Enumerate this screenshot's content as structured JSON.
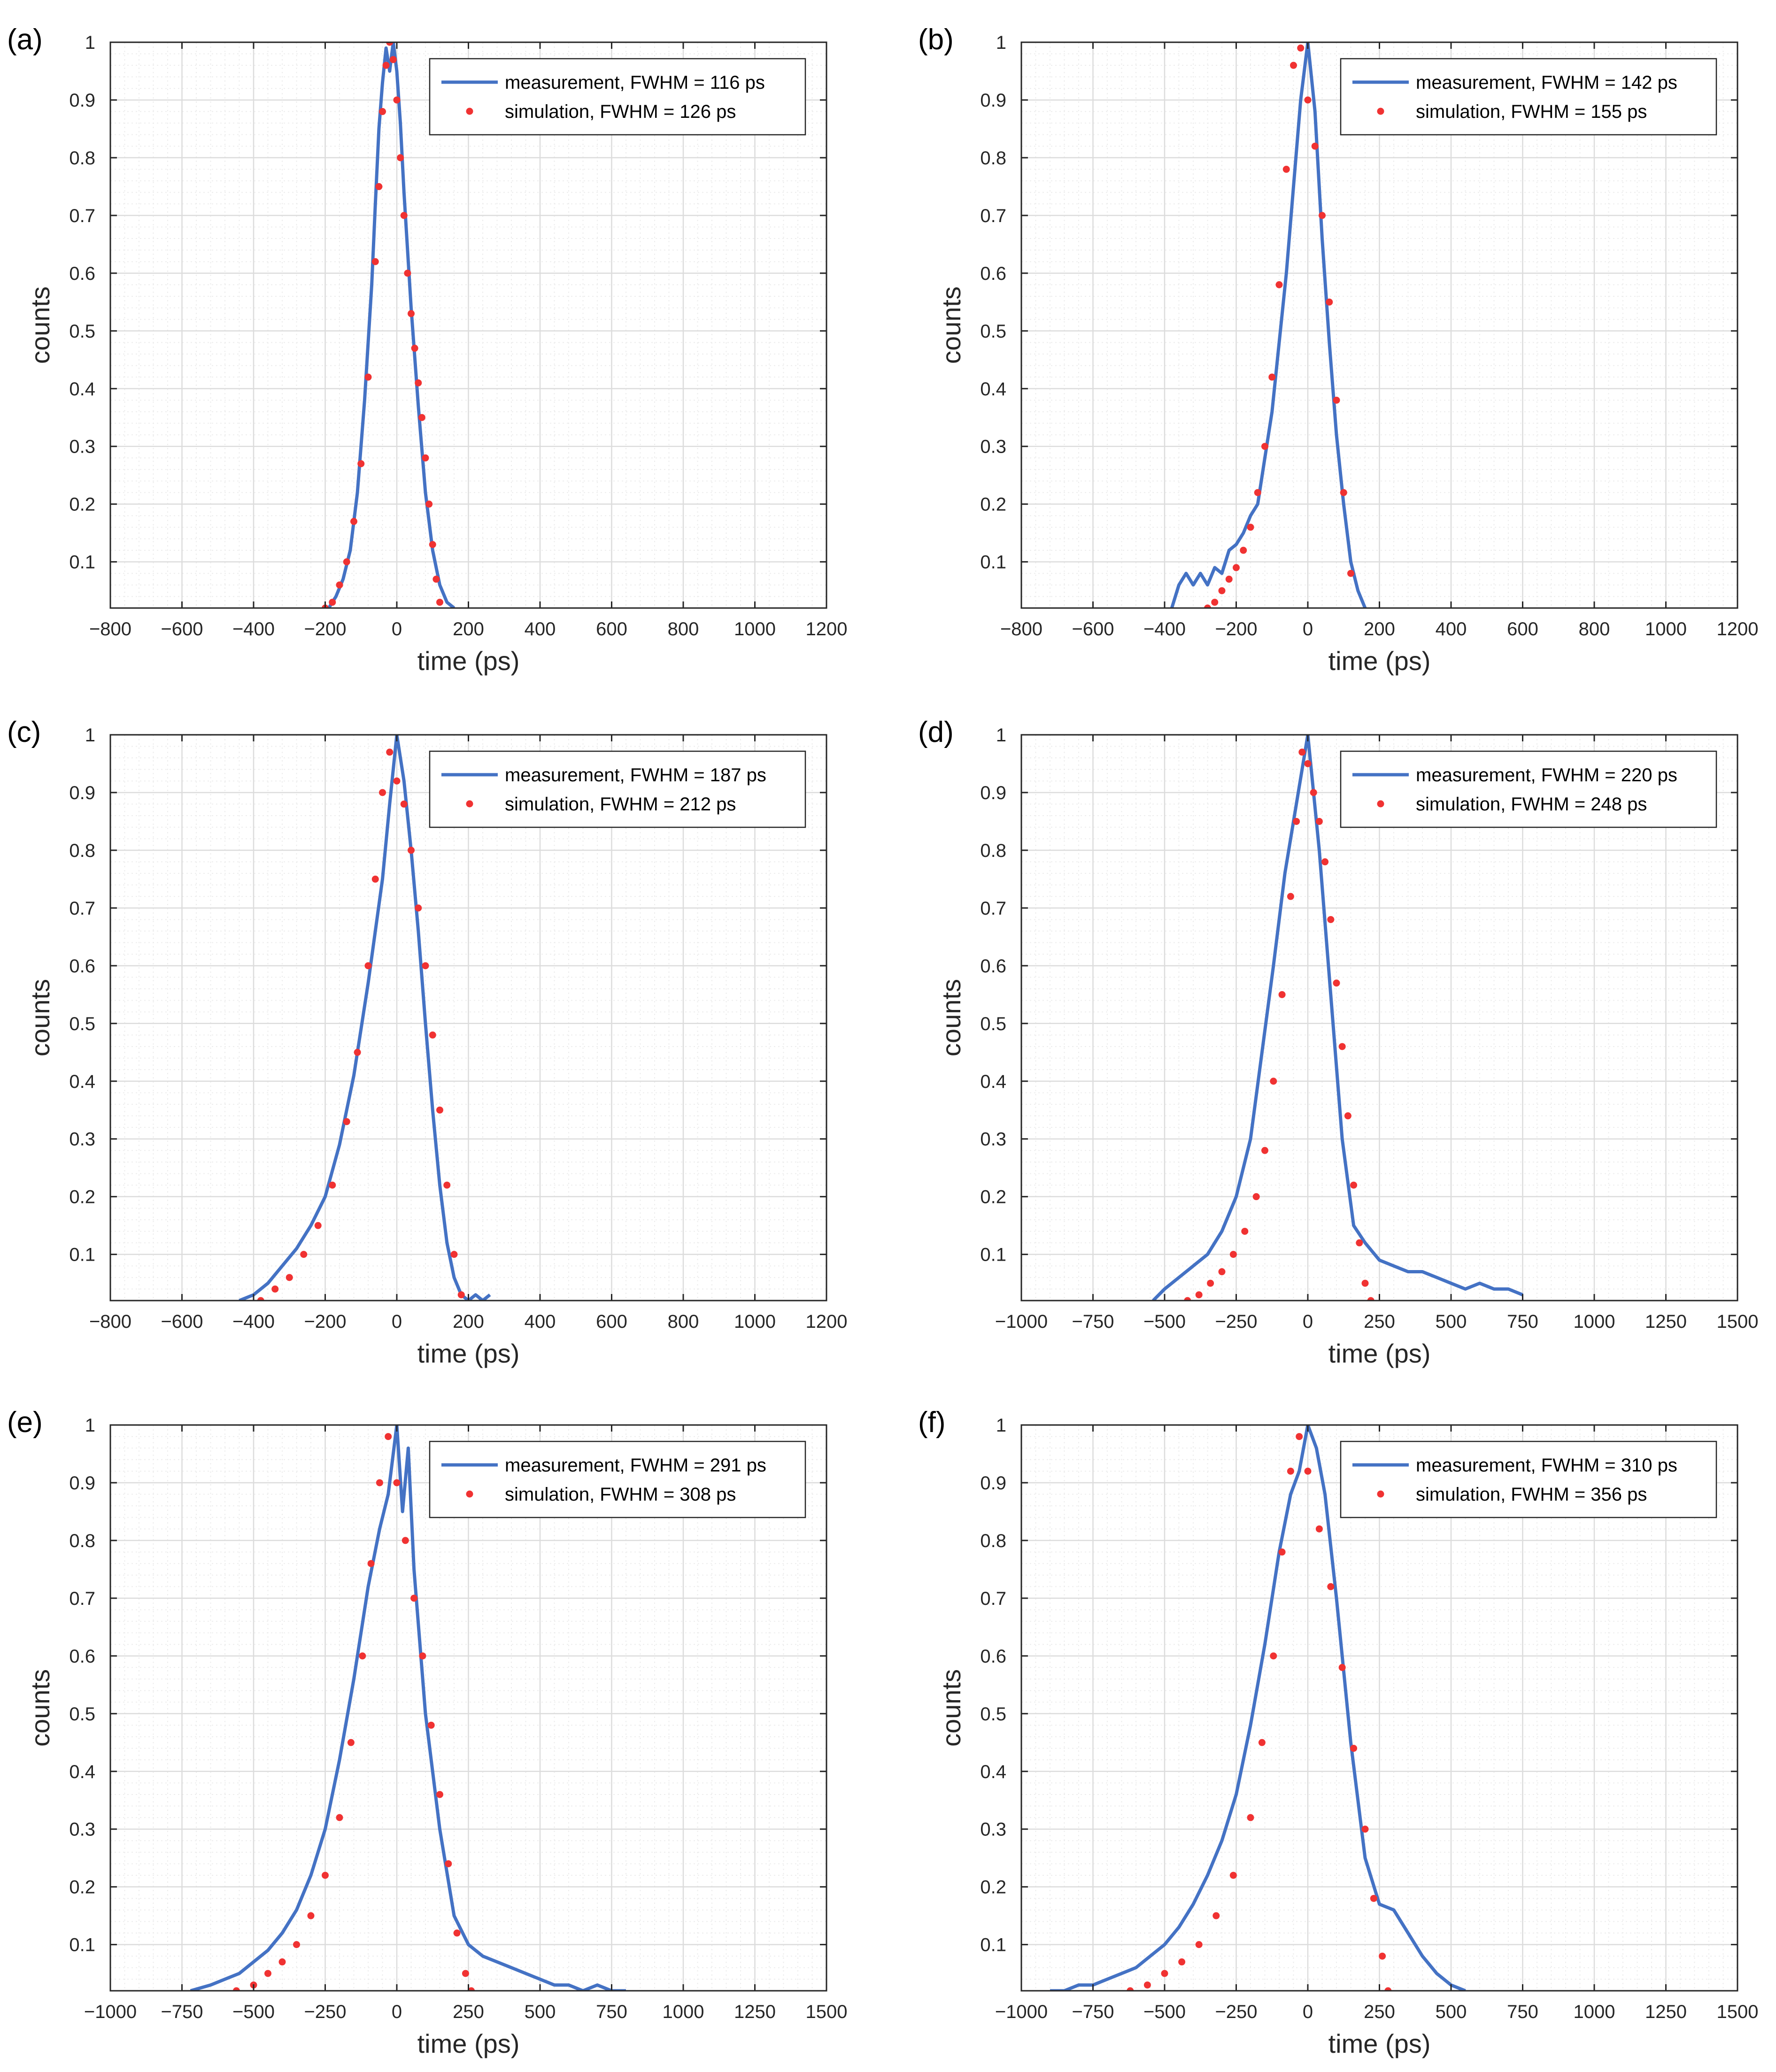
{
  "figure": {
    "style": {
      "measurement_color": "#4472C4",
      "simulation_color": "#F03232",
      "axes_border_color": "#262626",
      "major_grid_color": "#dcdcdc",
      "minor_grid_color": "#ededed"
    }
  },
  "chart_data": [
    {
      "panel": "(a)",
      "type": "line",
      "xlabel": "time (ps)",
      "ylabel": "counts",
      "xlim": [
        -800,
        1200
      ],
      "ylim": [
        0.02,
        1
      ],
      "xticks": [
        -800,
        -600,
        -400,
        -200,
        0,
        200,
        400,
        600,
        800,
        1000,
        1200
      ],
      "yticks": [
        0.1,
        0.2,
        0.3,
        0.4,
        0.5,
        0.6,
        0.7,
        0.8,
        0.9,
        1
      ],
      "grid": true,
      "minor_grid": true,
      "legend_position": "top-right",
      "series": [
        {
          "name": "measurement, FWHM = 116 ps",
          "style": "line",
          "x": [
            -190,
            -170,
            -150,
            -130,
            -110,
            -90,
            -70,
            -60,
            -50,
            -40,
            -30,
            -20,
            -10,
            0,
            10,
            20,
            30,
            40,
            60,
            80,
            100,
            120,
            140,
            160
          ],
          "y": [
            0.02,
            0.04,
            0.07,
            0.12,
            0.22,
            0.38,
            0.58,
            0.72,
            0.85,
            0.93,
            0.99,
            0.95,
            1.0,
            0.95,
            0.86,
            0.74,
            0.64,
            0.54,
            0.37,
            0.22,
            0.12,
            0.06,
            0.03,
            0.02
          ]
        },
        {
          "name": "simulation, FWHM = 126 ps",
          "style": "markers",
          "x": [
            -200,
            -180,
            -160,
            -140,
            -120,
            -100,
            -80,
            -60,
            -50,
            -40,
            -30,
            -20,
            -10,
            0,
            10,
            20,
            30,
            40,
            50,
            60,
            70,
            80,
            90,
            100,
            110,
            120
          ],
          "y": [
            0.02,
            0.03,
            0.06,
            0.1,
            0.17,
            0.27,
            0.42,
            0.62,
            0.75,
            0.88,
            0.96,
            1.0,
            0.97,
            0.9,
            0.8,
            0.7,
            0.6,
            0.53,
            0.47,
            0.41,
            0.35,
            0.28,
            0.2,
            0.13,
            0.07,
            0.03
          ]
        }
      ]
    },
    {
      "panel": "(b)",
      "type": "line",
      "xlabel": "time (ps)",
      "ylabel": "counts",
      "xlim": [
        -800,
        1200
      ],
      "ylim": [
        0.02,
        1
      ],
      "xticks": [
        -800,
        -600,
        -400,
        -200,
        0,
        200,
        400,
        600,
        800,
        1000,
        1200
      ],
      "yticks": [
        0.1,
        0.2,
        0.3,
        0.4,
        0.5,
        0.6,
        0.7,
        0.8,
        0.9,
        1
      ],
      "grid": true,
      "minor_grid": true,
      "legend_position": "top-right",
      "series": [
        {
          "name": "measurement, FWHM = 142 ps",
          "style": "line",
          "x": [
            -380,
            -360,
            -340,
            -320,
            -300,
            -280,
            -260,
            -240,
            -220,
            -200,
            -180,
            -160,
            -140,
            -120,
            -100,
            -80,
            -60,
            -40,
            -20,
            0,
            20,
            40,
            60,
            80,
            100,
            120,
            140,
            160
          ],
          "y": [
            0.02,
            0.06,
            0.08,
            0.06,
            0.08,
            0.06,
            0.09,
            0.08,
            0.12,
            0.13,
            0.15,
            0.18,
            0.2,
            0.28,
            0.36,
            0.48,
            0.6,
            0.75,
            0.9,
            1.0,
            0.88,
            0.66,
            0.48,
            0.32,
            0.2,
            0.1,
            0.05,
            0.02
          ]
        },
        {
          "name": "simulation, FWHM = 155 ps",
          "style": "markers",
          "x": [
            -280,
            -260,
            -240,
            -220,
            -200,
            -180,
            -160,
            -140,
            -120,
            -100,
            -80,
            -60,
            -40,
            -20,
            0,
            20,
            40,
            60,
            80,
            100,
            120
          ],
          "y": [
            0.02,
            0.03,
            0.05,
            0.07,
            0.09,
            0.12,
            0.16,
            0.22,
            0.3,
            0.42,
            0.58,
            0.78,
            0.96,
            0.99,
            0.9,
            0.82,
            0.7,
            0.55,
            0.38,
            0.22,
            0.08
          ]
        }
      ]
    },
    {
      "panel": "(c)",
      "type": "line",
      "xlabel": "time (ps)",
      "ylabel": "counts",
      "xlim": [
        -800,
        1200
      ],
      "ylim": [
        0.02,
        1
      ],
      "xticks": [
        -800,
        -600,
        -400,
        -200,
        0,
        200,
        400,
        600,
        800,
        1000,
        1200
      ],
      "yticks": [
        0.1,
        0.2,
        0.3,
        0.4,
        0.5,
        0.6,
        0.7,
        0.8,
        0.9,
        1
      ],
      "grid": true,
      "minor_grid": true,
      "legend_position": "top-right",
      "series": [
        {
          "name": "measurement, FWHM = 187 ps",
          "style": "line",
          "x": [
            -440,
            -400,
            -360,
            -320,
            -280,
            -240,
            -200,
            -160,
            -120,
            -80,
            -40,
            -20,
            0,
            20,
            40,
            60,
            80,
            100,
            120,
            140,
            160,
            180,
            200,
            220,
            240,
            260
          ],
          "y": [
            0.02,
            0.03,
            0.05,
            0.08,
            0.11,
            0.15,
            0.2,
            0.29,
            0.41,
            0.57,
            0.75,
            0.88,
            1.0,
            0.92,
            0.8,
            0.66,
            0.5,
            0.35,
            0.22,
            0.12,
            0.06,
            0.03,
            0.02,
            0.03,
            0.02,
            0.03
          ]
        },
        {
          "name": "simulation, FWHM = 212 ps",
          "style": "markers",
          "x": [
            -380,
            -340,
            -300,
            -260,
            -220,
            -180,
            -140,
            -110,
            -80,
            -60,
            -40,
            -20,
            0,
            20,
            40,
            60,
            80,
            100,
            120,
            140,
            160,
            180
          ],
          "y": [
            0.02,
            0.04,
            0.06,
            0.1,
            0.15,
            0.22,
            0.33,
            0.45,
            0.6,
            0.75,
            0.9,
            0.97,
            0.92,
            0.88,
            0.8,
            0.7,
            0.6,
            0.48,
            0.35,
            0.22,
            0.1,
            0.03
          ]
        }
      ]
    },
    {
      "panel": "(d)",
      "type": "line",
      "xlabel": "time (ps)",
      "ylabel": "counts",
      "xlim": [
        -1000,
        1500
      ],
      "ylim": [
        0.02,
        1
      ],
      "xticks": [
        -1000,
        -750,
        -500,
        -250,
        0,
        250,
        500,
        750,
        1000,
        1250,
        1500
      ],
      "yticks": [
        0.1,
        0.2,
        0.3,
        0.4,
        0.5,
        0.6,
        0.7,
        0.8,
        0.9,
        1
      ],
      "grid": true,
      "minor_grid": true,
      "legend_position": "top-right",
      "series": [
        {
          "name": "measurement, FWHM = 220 ps",
          "style": "line",
          "x": [
            -540,
            -500,
            -450,
            -400,
            -350,
            -300,
            -250,
            -200,
            -160,
            -120,
            -80,
            -40,
            0,
            40,
            80,
            120,
            160,
            200,
            250,
            300,
            350,
            400,
            450,
            500,
            550,
            600,
            650,
            700,
            750
          ],
          "y": [
            0.02,
            0.04,
            0.06,
            0.08,
            0.1,
            0.14,
            0.2,
            0.3,
            0.45,
            0.6,
            0.76,
            0.88,
            1.0,
            0.8,
            0.55,
            0.3,
            0.15,
            0.12,
            0.09,
            0.08,
            0.07,
            0.07,
            0.06,
            0.05,
            0.04,
            0.05,
            0.04,
            0.04,
            0.03
          ]
        },
        {
          "name": "simulation, FWHM = 248 ps",
          "style": "markers",
          "x": [
            -420,
            -380,
            -340,
            -300,
            -260,
            -220,
            -180,
            -150,
            -120,
            -90,
            -60,
            -40,
            -20,
            0,
            20,
            40,
            60,
            80,
            100,
            120,
            140,
            160,
            180,
            200,
            220
          ],
          "y": [
            0.02,
            0.03,
            0.05,
            0.07,
            0.1,
            0.14,
            0.2,
            0.28,
            0.4,
            0.55,
            0.72,
            0.85,
            0.97,
            0.95,
            0.9,
            0.85,
            0.78,
            0.68,
            0.57,
            0.46,
            0.34,
            0.22,
            0.12,
            0.05,
            0.02
          ]
        }
      ]
    },
    {
      "panel": "(e)",
      "type": "line",
      "xlabel": "time (ps)",
      "ylabel": "counts",
      "xlim": [
        -1000,
        1500
      ],
      "ylim": [
        0.02,
        1
      ],
      "xticks": [
        -1000,
        -750,
        -500,
        -250,
        0,
        250,
        500,
        750,
        1000,
        1250,
        1500
      ],
      "yticks": [
        0.1,
        0.2,
        0.3,
        0.4,
        0.5,
        0.6,
        0.7,
        0.8,
        0.9,
        1
      ],
      "grid": true,
      "minor_grid": true,
      "legend_position": "top-right",
      "series": [
        {
          "name": "measurement, FWHM = 291 ps",
          "style": "line",
          "x": [
            -720,
            -650,
            -600,
            -550,
            -500,
            -450,
            -400,
            -350,
            -300,
            -250,
            -200,
            -150,
            -100,
            -60,
            -30,
            0,
            20,
            40,
            60,
            100,
            150,
            200,
            250,
            300,
            350,
            400,
            450,
            500,
            550,
            600,
            650,
            700,
            750,
            800
          ],
          "y": [
            0.02,
            0.03,
            0.04,
            0.05,
            0.07,
            0.09,
            0.12,
            0.16,
            0.22,
            0.3,
            0.42,
            0.56,
            0.72,
            0.82,
            0.88,
            1.0,
            0.85,
            0.96,
            0.75,
            0.5,
            0.3,
            0.15,
            0.1,
            0.08,
            0.07,
            0.06,
            0.05,
            0.04,
            0.03,
            0.03,
            0.02,
            0.03,
            0.02,
            0.02
          ]
        },
        {
          "name": "simulation, FWHM = 308 ps",
          "style": "markers",
          "x": [
            -560,
            -500,
            -450,
            -400,
            -350,
            -300,
            -250,
            -200,
            -160,
            -120,
            -90,
            -60,
            -30,
            0,
            30,
            60,
            90,
            120,
            150,
            180,
            210,
            240,
            260
          ],
          "y": [
            0.02,
            0.03,
            0.05,
            0.07,
            0.1,
            0.15,
            0.22,
            0.32,
            0.45,
            0.6,
            0.76,
            0.9,
            0.98,
            0.9,
            0.8,
            0.7,
            0.6,
            0.48,
            0.36,
            0.24,
            0.12,
            0.05,
            0.02
          ]
        }
      ]
    },
    {
      "panel": "(f)",
      "type": "line",
      "xlabel": "time (ps)",
      "ylabel": "counts",
      "xlim": [
        -1000,
        1500
      ],
      "ylim": [
        0.02,
        1
      ],
      "xticks": [
        -1000,
        -750,
        -500,
        -250,
        0,
        250,
        500,
        750,
        1000,
        1250,
        1500
      ],
      "yticks": [
        0.1,
        0.2,
        0.3,
        0.4,
        0.5,
        0.6,
        0.7,
        0.8,
        0.9,
        1
      ],
      "grid": true,
      "minor_grid": true,
      "legend_position": "top-right",
      "series": [
        {
          "name": "measurement, FWHM = 310 ps",
          "style": "line",
          "x": [
            -900,
            -850,
            -800,
            -750,
            -700,
            -650,
            -600,
            -550,
            -500,
            -450,
            -400,
            -350,
            -300,
            -250,
            -200,
            -150,
            -100,
            -60,
            -30,
            0,
            30,
            60,
            100,
            150,
            200,
            250,
            300,
            350,
            400,
            450,
            500,
            550
          ],
          "y": [
            0.02,
            0.02,
            0.03,
            0.03,
            0.04,
            0.05,
            0.06,
            0.08,
            0.1,
            0.13,
            0.17,
            0.22,
            0.28,
            0.36,
            0.48,
            0.62,
            0.78,
            0.88,
            0.92,
            1.0,
            0.96,
            0.88,
            0.7,
            0.45,
            0.25,
            0.17,
            0.16,
            0.12,
            0.08,
            0.05,
            0.03,
            0.02
          ]
        },
        {
          "name": "simulation, FWHM = 356 ps",
          "style": "markers",
          "x": [
            -620,
            -560,
            -500,
            -440,
            -380,
            -320,
            -260,
            -200,
            -160,
            -120,
            -90,
            -60,
            -30,
            0,
            40,
            80,
            120,
            160,
            200,
            230,
            260,
            280
          ],
          "y": [
            0.02,
            0.03,
            0.05,
            0.07,
            0.1,
            0.15,
            0.22,
            0.32,
            0.45,
            0.6,
            0.78,
            0.92,
            0.98,
            0.92,
            0.82,
            0.72,
            0.58,
            0.44,
            0.3,
            0.18,
            0.08,
            0.02
          ]
        }
      ]
    }
  ]
}
